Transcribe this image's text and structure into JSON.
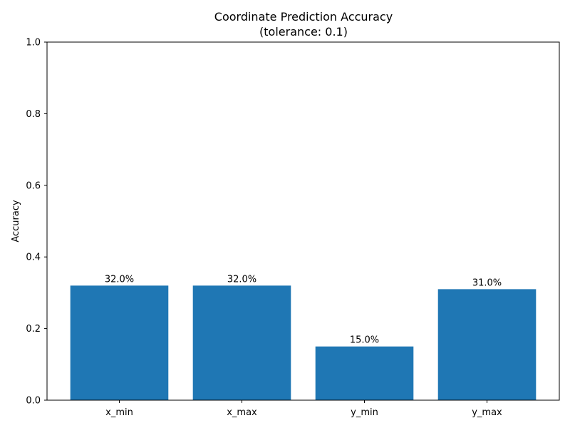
{
  "chart_data": {
    "type": "bar",
    "title": "Coordinate Prediction Accuracy",
    "subtitle": "(tolerance: 0.1)",
    "xlabel": "",
    "ylabel": "Accuracy",
    "categories": [
      "x_min",
      "x_max",
      "y_min",
      "y_max"
    ],
    "values": [
      0.32,
      0.32,
      0.15,
      0.31
    ],
    "data_labels": [
      "32.0%",
      "32.0%",
      "15.0%",
      "31.0%"
    ],
    "ylim": [
      0,
      1.0
    ],
    "yticks": [
      0.0,
      0.2,
      0.4,
      0.6,
      0.8,
      1.0
    ],
    "ytick_labels": [
      "0.0",
      "0.2",
      "0.4",
      "0.6",
      "0.8",
      "1.0"
    ],
    "grid": false,
    "bar_color": "#1f77b4"
  }
}
